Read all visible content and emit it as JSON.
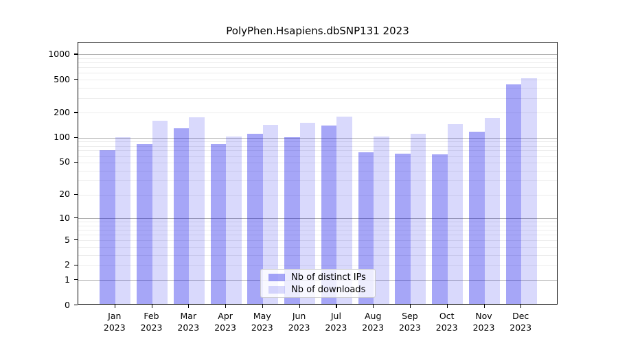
{
  "chart_data": {
    "type": "bar",
    "title": "PolyPhen.Hsapiens.dbSNP131 2023",
    "x_tick_year": "2023",
    "categories": [
      "Jan",
      "Feb",
      "Mar",
      "Apr",
      "May",
      "Jun",
      "Jul",
      "Aug",
      "Sep",
      "Oct",
      "Nov",
      "Dec"
    ],
    "series": [
      {
        "name": "Nb of distinct IPs",
        "color": "rgba(0,0,232,0.35)",
        "values": [
          68,
          81,
          126,
          81,
          108,
          97,
          136,
          64,
          62,
          61,
          115,
          425
        ]
      },
      {
        "name": "Nb of downloads",
        "color": "rgba(0,0,232,0.15)",
        "values": [
          97,
          155,
          170,
          100,
          137,
          146,
          172,
          100,
          108,
          141,
          166,
          500
        ]
      }
    ],
    "yscale": "log1p",
    "ylim": [
      0,
      1390
    ],
    "yticks": [
      1000,
      500,
      200,
      100,
      50,
      20,
      10,
      5,
      2,
      1,
      0
    ],
    "grid": {
      "major": [
        1,
        10,
        100,
        1000
      ],
      "minor": [
        2,
        3,
        4,
        5,
        6,
        7,
        8,
        9,
        20,
        30,
        40,
        50,
        60,
        70,
        80,
        90,
        200,
        300,
        400,
        500,
        600,
        700,
        800,
        900
      ]
    },
    "legend": {
      "position": "lower center"
    },
    "colors": {
      "grid_major": "#b0b0b0",
      "grid_minor": "#ececec",
      "spine": "#000000",
      "text": "#000000"
    }
  }
}
